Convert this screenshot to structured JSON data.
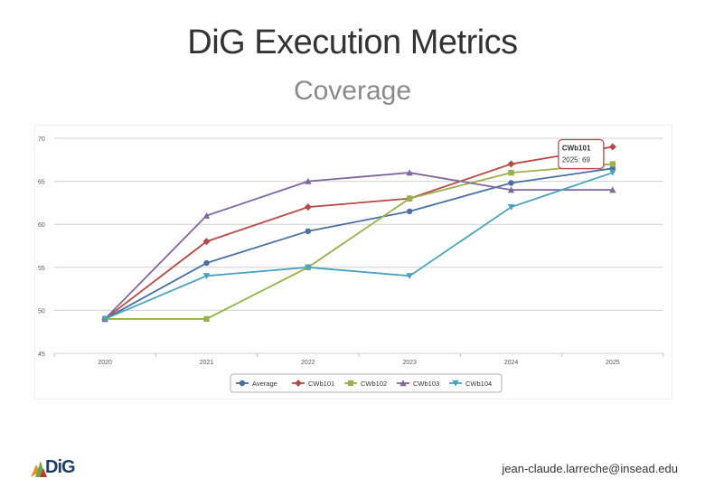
{
  "page": {
    "title": "DiG Execution Metrics",
    "subtitle": "Coverage",
    "footer_email": "jean-claude.larreche@insead.edu",
    "logo_text": "DiG"
  },
  "chart_data": {
    "type": "line",
    "title": "Coverage",
    "x": [
      "2020",
      "2021",
      "2022",
      "2023",
      "2024",
      "2025"
    ],
    "ylim": [
      45,
      70
    ],
    "yticks": [
      "45",
      "50",
      "55",
      "60",
      "65",
      "70"
    ],
    "grid": true,
    "legend_position": "bottom-center",
    "series": [
      {
        "name": "Average",
        "color": "#4a6fa5",
        "marker": "circle",
        "values": [
          49,
          55.5,
          59.2,
          61.5,
          64.8,
          66.5
        ]
      },
      {
        "name": "CWb101",
        "color": "#b54a48",
        "marker": "diamond",
        "values": [
          49,
          58,
          62,
          63,
          67,
          69
        ]
      },
      {
        "name": "CWb102",
        "color": "#98b04e",
        "marker": "square",
        "values": [
          49,
          49,
          55,
          63,
          66,
          67
        ]
      },
      {
        "name": "CWb103",
        "color": "#7f679d",
        "marker": "triangle",
        "values": [
          49,
          61,
          65,
          66,
          64,
          64
        ]
      },
      {
        "name": "CWb104",
        "color": "#4aa3be",
        "marker": "triangle-down",
        "values": [
          49,
          54,
          55,
          54,
          62,
          66
        ]
      }
    ],
    "tooltip": {
      "series": "CWb101",
      "text": "2025: 69"
    }
  }
}
